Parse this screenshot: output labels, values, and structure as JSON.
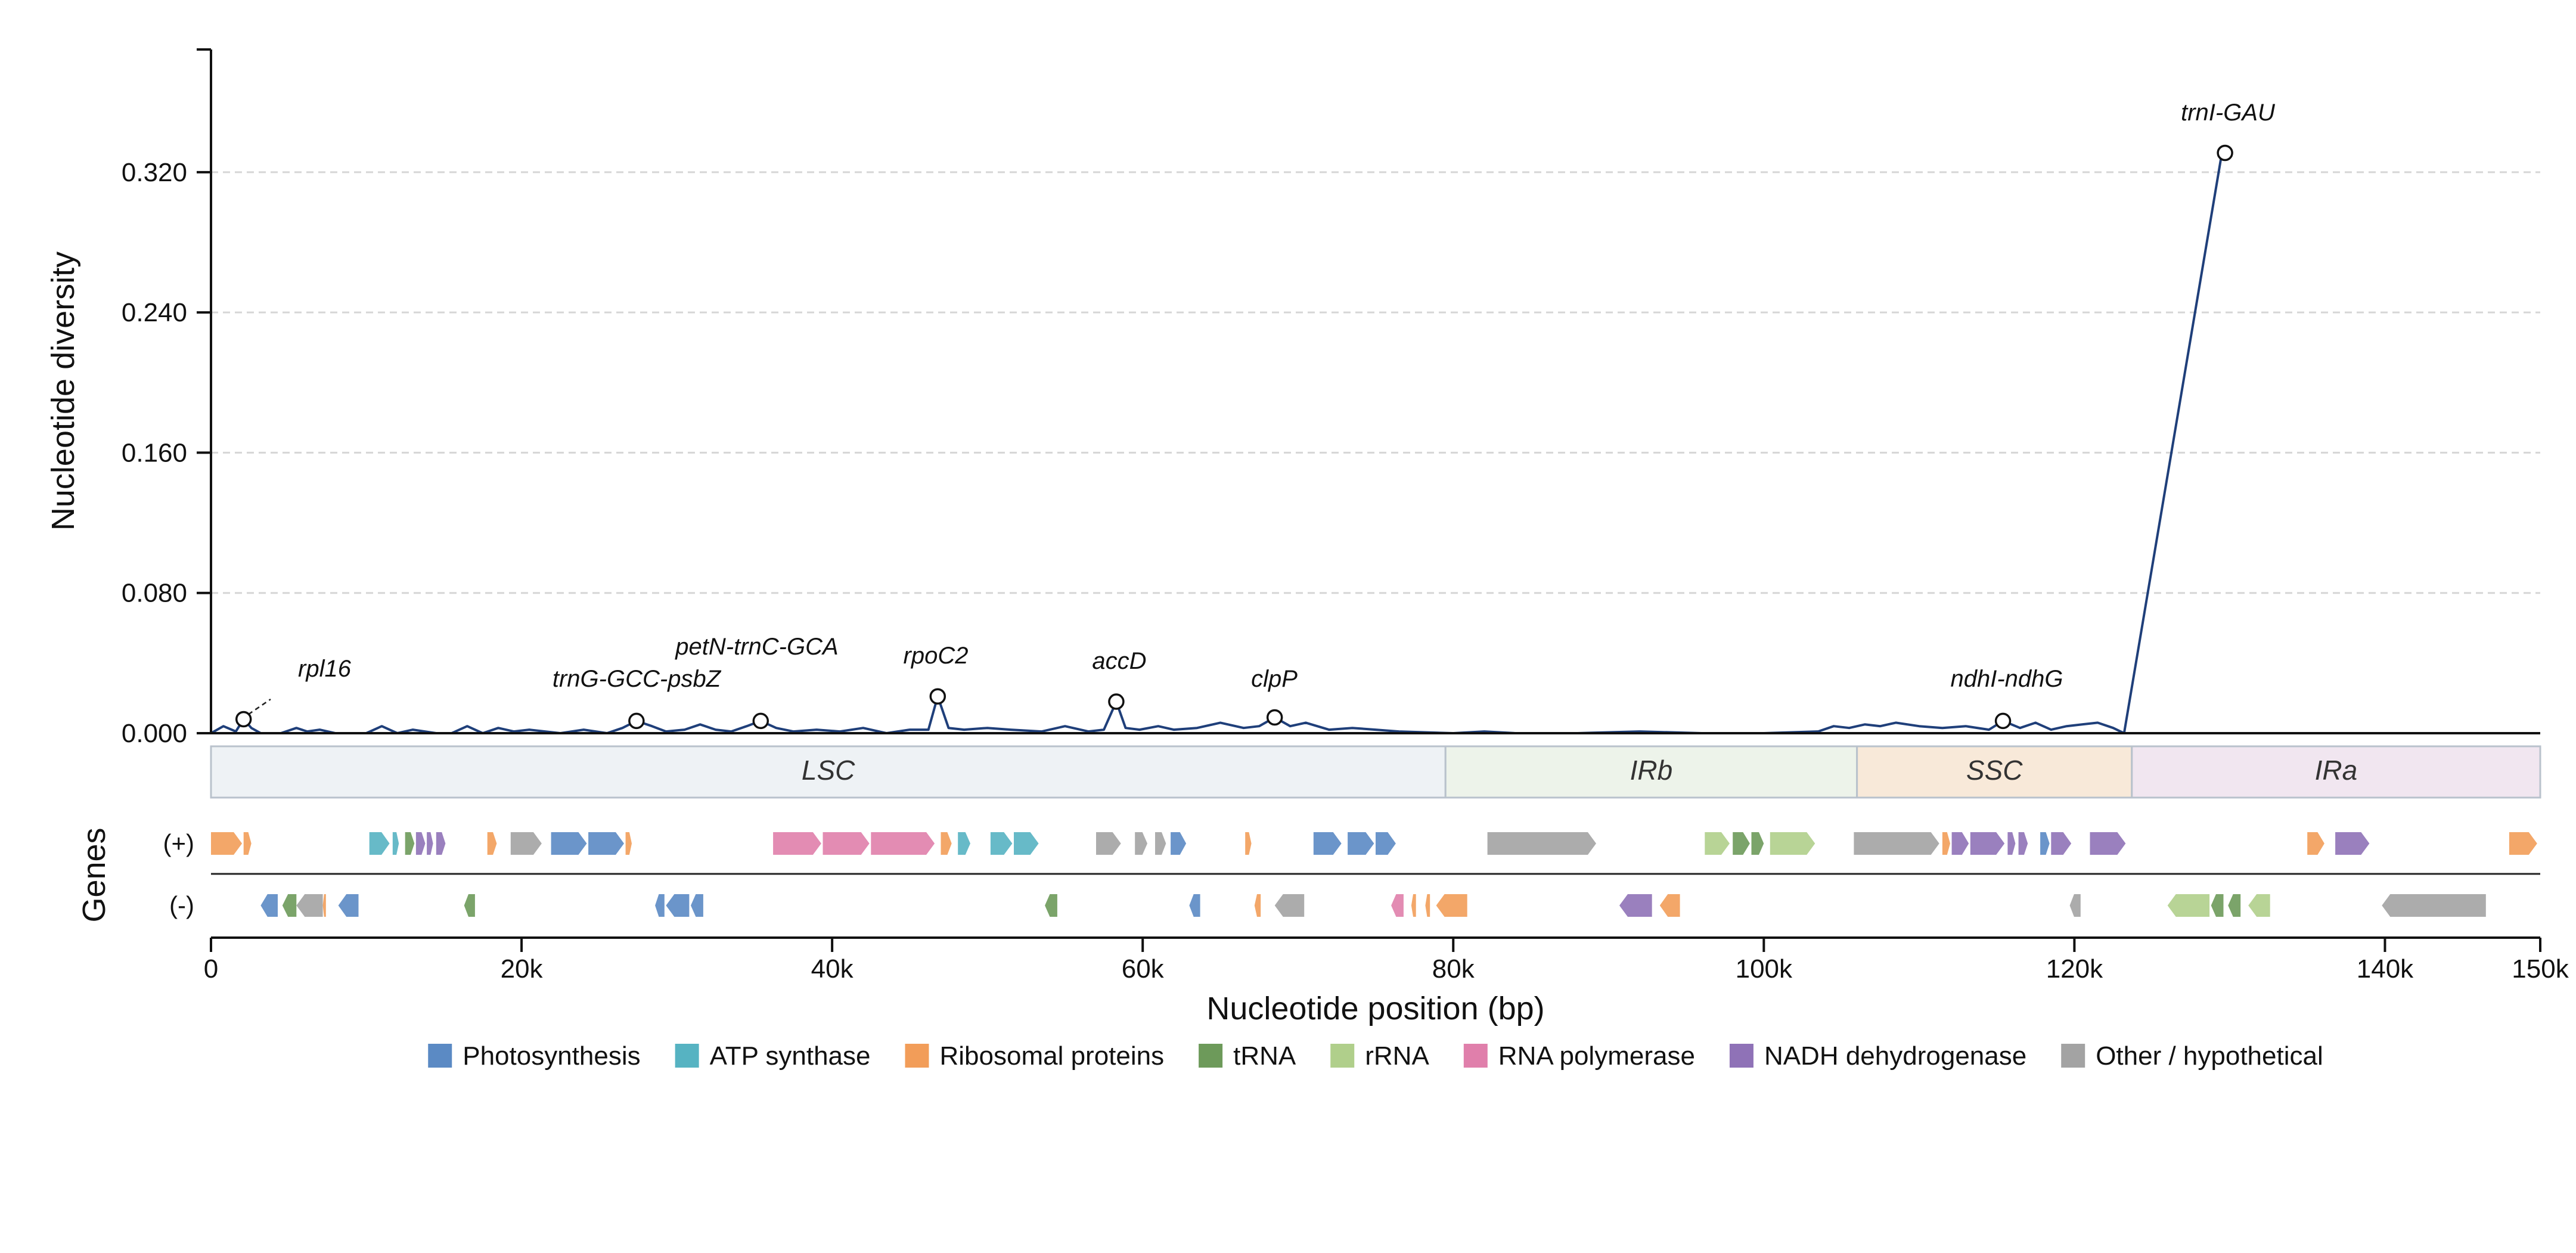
{
  "chart_data": {
    "type": "line",
    "xlabel": "Nucleotide position (bp)",
    "ylabel": "Nucleotide diversity",
    "xlim": [
      0,
      150000
    ],
    "ylim": [
      0,
      0.39
    ],
    "y_ticks": [
      "0.000",
      "0.080",
      "0.160",
      "0.240",
      "0.320"
    ],
    "x_ticks": [
      "0",
      "20k",
      "40k",
      "60k",
      "80k",
      "100k",
      "120k",
      "140k",
      "150k"
    ],
    "grid": "horizontal dashed",
    "line_color": "#1f3f7a",
    "series": [
      {
        "x": [
          0,
          800,
          1600,
          2100,
          2600,
          3200,
          4500,
          5500,
          6200,
          7000,
          8000,
          10000,
          11000,
          12000,
          13000,
          14500,
          15500,
          16500,
          17500,
          18500,
          19500,
          20500,
          22500,
          24000,
          25500,
          26500,
          27400,
          28400,
          29300,
          30500,
          31500,
          32500,
          33500,
          34500,
          35400,
          36400,
          37500,
          39000,
          40500,
          42000,
          43500,
          45000,
          46200,
          46800,
          47500,
          48500,
          50000,
          51500,
          53500,
          55000,
          56500,
          57500,
          58300,
          58900,
          59800,
          61000,
          62000,
          63500,
          65000,
          66500,
          67500,
          68500,
          69500,
          70500,
          72000,
          73500,
          75000,
          76500,
          80000,
          82000,
          84000,
          88000,
          92000,
          96000,
          100000,
          103500,
          104500,
          105500,
          106500,
          107500,
          108500,
          110000,
          111500,
          113000,
          114500,
          115400,
          116500,
          117500,
          118500,
          119500,
          120500,
          121500,
          122500,
          123200,
          129500,
          130000
        ],
        "y": [
          0.0,
          0.004,
          0.001,
          0.008,
          0.003,
          0.0,
          0.0,
          0.003,
          0.001,
          0.002,
          0.0,
          0.0,
          0.004,
          0.0,
          0.002,
          0.0,
          0.0,
          0.004,
          0.0,
          0.003,
          0.001,
          0.002,
          0.0,
          0.002,
          0.0,
          0.003,
          0.007,
          0.004,
          0.001,
          0.002,
          0.005,
          0.002,
          0.001,
          0.004,
          0.007,
          0.003,
          0.001,
          0.002,
          0.001,
          0.003,
          0.0,
          0.002,
          0.002,
          0.021,
          0.003,
          0.002,
          0.003,
          0.002,
          0.001,
          0.004,
          0.001,
          0.002,
          0.018,
          0.003,
          0.002,
          0.004,
          0.002,
          0.003,
          0.006,
          0.003,
          0.004,
          0.009,
          0.004,
          0.006,
          0.002,
          0.003,
          0.002,
          0.001,
          0.0,
          0.001,
          0.0,
          0.0,
          0.001,
          0.0,
          0.0,
          0.001,
          0.004,
          0.003,
          0.005,
          0.004,
          0.006,
          0.004,
          0.003,
          0.004,
          0.002,
          0.007,
          0.003,
          0.006,
          0.002,
          0.004,
          0.005,
          0.006,
          0.003,
          0.0,
          0.331,
          0.331
        ]
      }
    ],
    "peaks": [
      {
        "label": "rpl16",
        "x": 2100,
        "y": 0.008
      },
      {
        "label": "trnG-GCC-psbZ",
        "x": 27400,
        "y": 0.007
      },
      {
        "label": "petN-trnC-GCA",
        "x": 35400,
        "y": 0.007
      },
      {
        "label": "rpoC2",
        "x": 46800,
        "y": 0.021
      },
      {
        "label": "accD",
        "x": 58300,
        "y": 0.018
      },
      {
        "label": "clpP",
        "x": 68500,
        "y": 0.009
      },
      {
        "label": "ndhI-ndhG",
        "x": 115400,
        "y": 0.007
      },
      {
        "label": "trnI-GAU",
        "x": 129700,
        "y": 0.331
      }
    ],
    "regions": [
      {
        "label": "LSC",
        "start": 0,
        "end": 79500,
        "color": "#eef2f5"
      },
      {
        "label": "IRb",
        "start": 79500,
        "end": 106000,
        "color": "#edf3ea"
      },
      {
        "label": "SSC",
        "start": 106000,
        "end": 123700,
        "color": "#f8e9d9"
      },
      {
        "label": "IRa",
        "start": 123700,
        "end": 150000,
        "color": "#f1e6f0"
      }
    ],
    "genes_title": "Genes",
    "strand_labels": {
      "plus": "(+)",
      "minus": "(-)"
    },
    "categories": [
      {
        "key": "photo",
        "name": "Photosynthesis",
        "color": "#5b8ac4"
      },
      {
        "key": "atp",
        "name": "ATP synthase",
        "color": "#56b3c2"
      },
      {
        "key": "ribo",
        "name": "Ribosomal proteins",
        "color": "#f29d59"
      },
      {
        "key": "trna",
        "name": "tRNA",
        "color": "#6d9a5a"
      },
      {
        "key": "rrna",
        "name": "rRNA",
        "color": "#b0cf8b"
      },
      {
        "key": "rnap",
        "name": "RNA polymerase",
        "color": "#e07fab"
      },
      {
        "key": "ndh",
        "name": "NADH dehydrogenase",
        "color": "#8f72b7"
      },
      {
        "key": "other",
        "name": "Other / hypothetical",
        "color": "#a3a3a3"
      }
    ],
    "genes": [
      {
        "strand": "+",
        "start": 0,
        "end": 2000,
        "cat": "ribo"
      },
      {
        "strand": "+",
        "start": 2100,
        "end": 2600,
        "cat": "ribo"
      },
      {
        "strand": "+",
        "start": 10200,
        "end": 11500,
        "cat": "atp"
      },
      {
        "strand": "+",
        "start": 11700,
        "end": 12100,
        "cat": "atp"
      },
      {
        "strand": "+",
        "start": 12500,
        "end": 13100,
        "cat": "trna"
      },
      {
        "strand": "+",
        "start": 13200,
        "end": 13800,
        "cat": "ndh"
      },
      {
        "strand": "+",
        "start": 13900,
        "end": 14300,
        "cat": "ndh"
      },
      {
        "strand": "+",
        "start": 14500,
        "end": 15100,
        "cat": "ndh"
      },
      {
        "strand": "+",
        "start": 17800,
        "end": 18400,
        "cat": "ribo"
      },
      {
        "strand": "+",
        "start": 19300,
        "end": 21300,
        "cat": "other"
      },
      {
        "strand": "+",
        "start": 21900,
        "end": 24200,
        "cat": "photo"
      },
      {
        "strand": "+",
        "start": 24300,
        "end": 26600,
        "cat": "photo"
      },
      {
        "strand": "+",
        "start": 26700,
        "end": 27100,
        "cat": "ribo"
      },
      {
        "strand": "+",
        "start": 36200,
        "end": 39300,
        "cat": "rnap"
      },
      {
        "strand": "+",
        "start": 39400,
        "end": 42400,
        "cat": "rnap"
      },
      {
        "strand": "+",
        "start": 42500,
        "end": 46600,
        "cat": "rnap"
      },
      {
        "strand": "+",
        "start": 47000,
        "end": 47700,
        "cat": "ribo"
      },
      {
        "strand": "+",
        "start": 48100,
        "end": 48900,
        "cat": "atp"
      },
      {
        "strand": "+",
        "start": 50200,
        "end": 51600,
        "cat": "atp"
      },
      {
        "strand": "+",
        "start": 51700,
        "end": 53300,
        "cat": "atp"
      },
      {
        "strand": "+",
        "start": 57000,
        "end": 58600,
        "cat": "other"
      },
      {
        "strand": "+",
        "start": 59500,
        "end": 60300,
        "cat": "other"
      },
      {
        "strand": "+",
        "start": 60800,
        "end": 61500,
        "cat": "other"
      },
      {
        "strand": "+",
        "start": 61800,
        "end": 62800,
        "cat": "photo"
      },
      {
        "strand": "+",
        "start": 66600,
        "end": 67000,
        "cat": "ribo"
      },
      {
        "strand": "+",
        "start": 71000,
        "end": 72800,
        "cat": "photo"
      },
      {
        "strand": "+",
        "start": 73200,
        "end": 74900,
        "cat": "photo"
      },
      {
        "strand": "+",
        "start": 75000,
        "end": 76300,
        "cat": "photo"
      },
      {
        "strand": "+",
        "start": 82200,
        "end": 89200,
        "cat": "other"
      },
      {
        "strand": "+",
        "start": 96200,
        "end": 97800,
        "cat": "rrna"
      },
      {
        "strand": "+",
        "start": 98000,
        "end": 99100,
        "cat": "trna"
      },
      {
        "strand": "+",
        "start": 99200,
        "end": 100000,
        "cat": "trna"
      },
      {
        "strand": "+",
        "start": 100400,
        "end": 103300,
        "cat": "rrna"
      },
      {
        "strand": "+",
        "start": 105800,
        "end": 111300,
        "cat": "other"
      },
      {
        "strand": "+",
        "start": 111500,
        "end": 112000,
        "cat": "ribo"
      },
      {
        "strand": "+",
        "start": 112100,
        "end": 113200,
        "cat": "ndh"
      },
      {
        "strand": "+",
        "start": 113300,
        "end": 115500,
        "cat": "ndh"
      },
      {
        "strand": "+",
        "start": 115700,
        "end": 116200,
        "cat": "ndh"
      },
      {
        "strand": "+",
        "start": 116400,
        "end": 117000,
        "cat": "ndh"
      },
      {
        "strand": "+",
        "start": 117800,
        "end": 118400,
        "cat": "photo"
      },
      {
        "strand": "+",
        "start": 118500,
        "end": 119800,
        "cat": "ndh"
      },
      {
        "strand": "+",
        "start": 121000,
        "end": 123300,
        "cat": "ndh"
      },
      {
        "strand": "+",
        "start": 135000,
        "end": 136100,
        "cat": "ribo"
      },
      {
        "strand": "+",
        "start": 136800,
        "end": 139000,
        "cat": "ndh"
      },
      {
        "strand": "+",
        "start": 148000,
        "end": 149800,
        "cat": "ribo"
      },
      {
        "strand": "-",
        "start": 3200,
        "end": 4300,
        "cat": "photo"
      },
      {
        "strand": "-",
        "start": 4600,
        "end": 5500,
        "cat": "trna"
      },
      {
        "strand": "-",
        "start": 5500,
        "end": 7200,
        "cat": "other"
      },
      {
        "strand": "-",
        "start": 7200,
        "end": 7400,
        "cat": "ribo"
      },
      {
        "strand": "-",
        "start": 8200,
        "end": 9500,
        "cat": "photo"
      },
      {
        "strand": "-",
        "start": 16300,
        "end": 17000,
        "cat": "trna"
      },
      {
        "strand": "-",
        "start": 28600,
        "end": 29200,
        "cat": "photo"
      },
      {
        "strand": "-",
        "start": 29300,
        "end": 30800,
        "cat": "photo"
      },
      {
        "strand": "-",
        "start": 30900,
        "end": 31700,
        "cat": "photo"
      },
      {
        "strand": "-",
        "start": 53700,
        "end": 54500,
        "cat": "trna"
      },
      {
        "strand": "-",
        "start": 63000,
        "end": 63700,
        "cat": "photo"
      },
      {
        "strand": "-",
        "start": 67200,
        "end": 67600,
        "cat": "ribo"
      },
      {
        "strand": "-",
        "start": 68500,
        "end": 70400,
        "cat": "other"
      },
      {
        "strand": "-",
        "start": 76000,
        "end": 76800,
        "cat": "rnap"
      },
      {
        "strand": "-",
        "start": 77300,
        "end": 77600,
        "cat": "ribo"
      },
      {
        "strand": "-",
        "start": 78200,
        "end": 78500,
        "cat": "ribo"
      },
      {
        "strand": "-",
        "start": 78900,
        "end": 80900,
        "cat": "ribo"
      },
      {
        "strand": "-",
        "start": 90700,
        "end": 92800,
        "cat": "ndh"
      },
      {
        "strand": "-",
        "start": 93300,
        "end": 94600,
        "cat": "ribo"
      },
      {
        "strand": "-",
        "start": 119700,
        "end": 120400,
        "cat": "other"
      },
      {
        "strand": "-",
        "start": 126000,
        "end": 128700,
        "cat": "rrna"
      },
      {
        "strand": "-",
        "start": 128800,
        "end": 129600,
        "cat": "trna"
      },
      {
        "strand": "-",
        "start": 129900,
        "end": 130700,
        "cat": "trna"
      },
      {
        "strand": "-",
        "start": 131200,
        "end": 132600,
        "cat": "rrna"
      },
      {
        "strand": "-",
        "start": 139800,
        "end": 146500,
        "cat": "other"
      }
    ]
  }
}
